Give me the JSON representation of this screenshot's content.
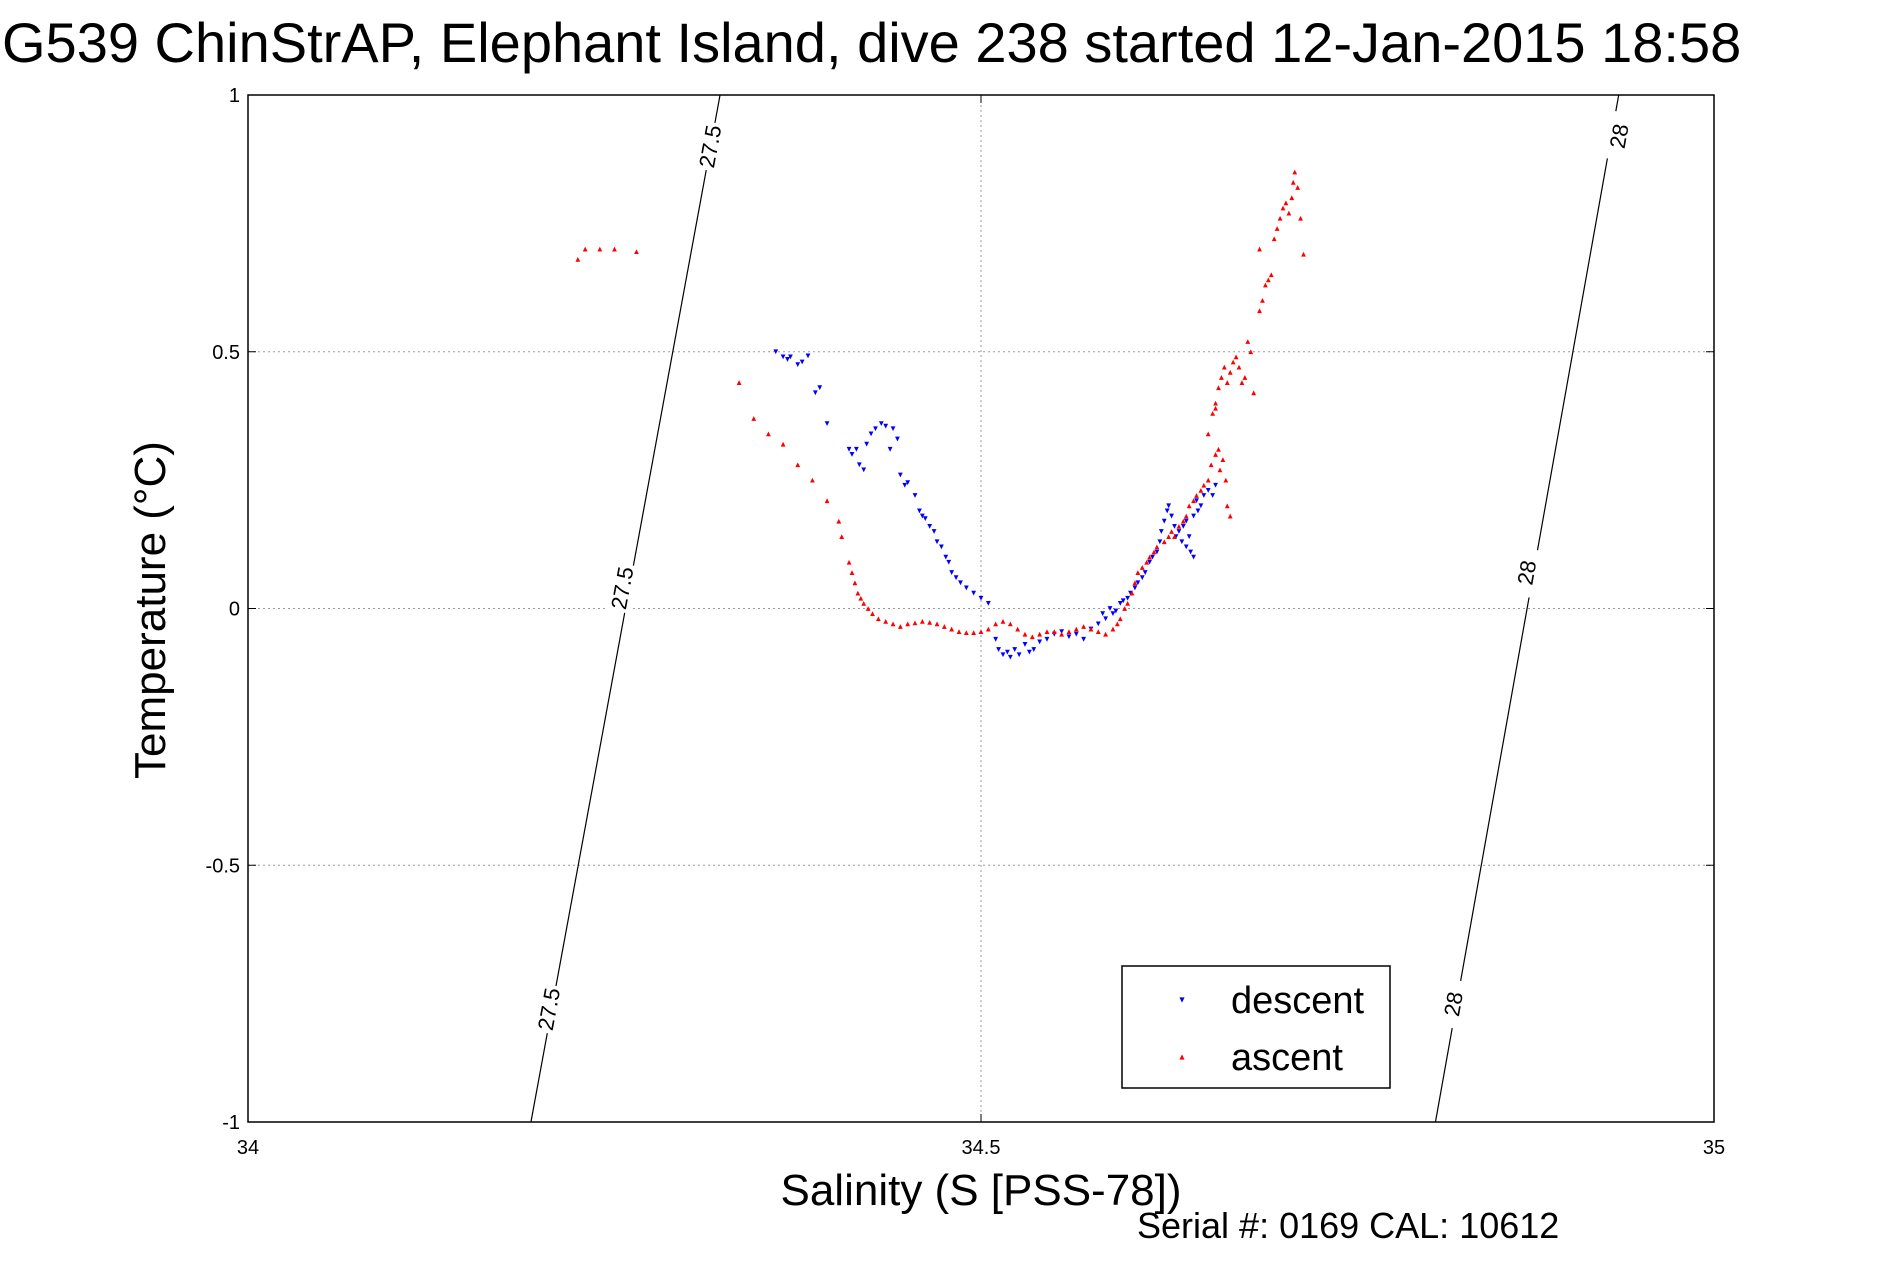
{
  "figure": {
    "title": "G539 ChinStrAP, Elephant Island, dive 238 started 12-Jan-2015 18:58",
    "footer": "Serial #: 0169 CAL: 10612"
  },
  "chart_data": {
    "type": "scatter",
    "title": "G539 ChinStrAP, Elephant Island, dive 238 started 12-Jan-2015 18:58",
    "xlabel": "Salinity (S [PSS-78])",
    "ylabel": "Temperature (°C)",
    "xlim": [
      34,
      35
    ],
    "ylim": [
      -1,
      1
    ],
    "xticks": [
      34,
      34.5,
      35
    ],
    "xtick_labels": [
      "34",
      "34.5",
      "35"
    ],
    "yticks": [
      -1,
      -0.5,
      0,
      0.5,
      1
    ],
    "ytick_labels": [
      "-1",
      "-0.5",
      "0",
      "0.5",
      "1"
    ],
    "grid": true,
    "legend_position": "bottom-right",
    "contours": [
      {
        "label": "27.5",
        "points": [
          [
            34.193,
            -1.0
          ],
          [
            34.322,
            1.0
          ]
        ],
        "label_positions": [
          [
            34.205,
            -0.78
          ],
          [
            34.255,
            0.04
          ],
          [
            34.315,
            0.9
          ]
        ]
      },
      {
        "label": "28",
        "points": [
          [
            34.81,
            -1.0
          ],
          [
            34.935,
            1.0
          ]
        ],
        "label_positions": [
          [
            34.822,
            -0.77
          ],
          [
            34.872,
            0.07
          ],
          [
            34.935,
            0.92
          ]
        ]
      }
    ],
    "series": [
      {
        "name": "descent",
        "color": "#0000ff",
        "marker": "triangle-down",
        "points": [
          [
            34.36,
            0.5
          ],
          [
            34.365,
            0.49
          ],
          [
            34.37,
            0.49
          ],
          [
            34.368,
            0.485
          ],
          [
            34.375,
            0.475
          ],
          [
            34.378,
            0.48
          ],
          [
            34.382,
            0.492
          ],
          [
            34.39,
            0.43
          ],
          [
            34.387,
            0.42
          ],
          [
            34.395,
            0.36
          ],
          [
            34.41,
            0.31
          ],
          [
            34.412,
            0.3
          ],
          [
            34.415,
            0.31
          ],
          [
            34.417,
            0.28
          ],
          [
            34.42,
            0.27
          ],
          [
            34.422,
            0.32
          ],
          [
            34.425,
            0.34
          ],
          [
            34.428,
            0.35
          ],
          [
            34.432,
            0.36
          ],
          [
            34.435,
            0.355
          ],
          [
            34.44,
            0.35
          ],
          [
            34.443,
            0.33
          ],
          [
            34.438,
            0.31
          ],
          [
            34.445,
            0.26
          ],
          [
            34.448,
            0.24
          ],
          [
            34.45,
            0.245
          ],
          [
            34.455,
            0.22
          ],
          [
            34.458,
            0.19
          ],
          [
            34.46,
            0.18
          ],
          [
            34.462,
            0.175
          ],
          [
            34.465,
            0.16
          ],
          [
            34.468,
            0.15
          ],
          [
            34.47,
            0.13
          ],
          [
            34.473,
            0.12
          ],
          [
            34.476,
            0.1
          ],
          [
            34.478,
            0.09
          ],
          [
            34.48,
            0.07
          ],
          [
            34.483,
            0.06
          ],
          [
            34.486,
            0.05
          ],
          [
            34.49,
            0.04
          ],
          [
            34.495,
            0.03
          ],
          [
            34.5,
            0.02
          ],
          [
            34.505,
            0.01
          ],
          [
            34.51,
            -0.06
          ],
          [
            34.512,
            -0.08
          ],
          [
            34.515,
            -0.09
          ],
          [
            34.518,
            -0.085
          ],
          [
            34.52,
            -0.095
          ],
          [
            34.523,
            -0.08
          ],
          [
            34.526,
            -0.09
          ],
          [
            34.53,
            -0.07
          ],
          [
            34.533,
            -0.085
          ],
          [
            34.536,
            -0.08
          ],
          [
            34.54,
            -0.065
          ],
          [
            34.545,
            -0.06
          ],
          [
            34.55,
            -0.05
          ],
          [
            34.555,
            -0.045
          ],
          [
            34.56,
            -0.055
          ],
          [
            34.565,
            -0.05
          ],
          [
            34.57,
            -0.06
          ],
          [
            34.575,
            -0.04
          ],
          [
            34.58,
            -0.03
          ],
          [
            34.583,
            -0.01
          ],
          [
            34.585,
            -0.02
          ],
          [
            34.588,
            0.0
          ],
          [
            34.59,
            -0.01
          ],
          [
            34.592,
            -0.005
          ],
          [
            34.595,
            0.01
          ],
          [
            34.597,
            0.015
          ],
          [
            34.6,
            0.02
          ],
          [
            34.602,
            0.03
          ],
          [
            34.605,
            0.04
          ],
          [
            34.607,
            0.05
          ],
          [
            34.61,
            0.06
          ],
          [
            34.612,
            0.07
          ],
          [
            34.615,
            0.09
          ],
          [
            34.617,
            0.1
          ],
          [
            34.62,
            0.11
          ],
          [
            34.622,
            0.13
          ],
          [
            34.623,
            0.15
          ],
          [
            34.625,
            0.17
          ],
          [
            34.627,
            0.19
          ],
          [
            34.628,
            0.2
          ],
          [
            34.63,
            0.18
          ],
          [
            34.632,
            0.16
          ],
          [
            34.633,
            0.14
          ],
          [
            34.635,
            0.15
          ],
          [
            34.637,
            0.13
          ],
          [
            34.638,
            0.16
          ],
          [
            34.64,
            0.17
          ],
          [
            34.64,
            0.12
          ],
          [
            34.642,
            0.14
          ],
          [
            34.643,
            0.11
          ],
          [
            34.645,
            0.1
          ],
          [
            34.645,
            0.18
          ],
          [
            34.647,
            0.21
          ],
          [
            34.648,
            0.19
          ],
          [
            34.65,
            0.2
          ],
          [
            34.652,
            0.22
          ],
          [
            34.655,
            0.23
          ],
          [
            34.658,
            0.22
          ],
          [
            34.66,
            0.24
          ]
        ]
      },
      {
        "name": "ascent",
        "color": "#ff0000",
        "marker": "triangle-up",
        "points": [
          [
            34.225,
            0.68
          ],
          [
            34.23,
            0.7
          ],
          [
            34.24,
            0.7
          ],
          [
            34.25,
            0.7
          ],
          [
            34.265,
            0.695
          ],
          [
            34.335,
            0.44
          ],
          [
            34.345,
            0.37
          ],
          [
            34.355,
            0.34
          ],
          [
            34.365,
            0.32
          ],
          [
            34.375,
            0.28
          ],
          [
            34.385,
            0.25
          ],
          [
            34.395,
            0.21
          ],
          [
            34.403,
            0.17
          ],
          [
            34.405,
            0.14
          ],
          [
            34.41,
            0.09
          ],
          [
            34.412,
            0.07
          ],
          [
            34.414,
            0.05
          ],
          [
            34.416,
            0.03
          ],
          [
            34.418,
            0.02
          ],
          [
            34.42,
            0.01
          ],
          [
            34.423,
            0.0
          ],
          [
            34.426,
            -0.01
          ],
          [
            34.43,
            -0.02
          ],
          [
            34.435,
            -0.025
          ],
          [
            34.44,
            -0.03
          ],
          [
            34.445,
            -0.035
          ],
          [
            34.45,
            -0.03
          ],
          [
            34.455,
            -0.028
          ],
          [
            34.46,
            -0.025
          ],
          [
            34.465,
            -0.027
          ],
          [
            34.47,
            -0.03
          ],
          [
            34.475,
            -0.035
          ],
          [
            34.48,
            -0.04
          ],
          [
            34.485,
            -0.045
          ],
          [
            34.49,
            -0.047
          ],
          [
            34.495,
            -0.047
          ],
          [
            34.5,
            -0.045
          ],
          [
            34.505,
            -0.04
          ],
          [
            34.51,
            -0.03
          ],
          [
            34.515,
            -0.025
          ],
          [
            34.52,
            -0.03
          ],
          [
            34.525,
            -0.04
          ],
          [
            34.53,
            -0.05
          ],
          [
            34.535,
            -0.055
          ],
          [
            34.54,
            -0.05
          ],
          [
            34.545,
            -0.045
          ],
          [
            34.55,
            -0.045
          ],
          [
            34.555,
            -0.05
          ],
          [
            34.56,
            -0.045
          ],
          [
            34.565,
            -0.04
          ],
          [
            34.57,
            -0.035
          ],
          [
            34.575,
            -0.04
          ],
          [
            34.58,
            -0.045
          ],
          [
            34.585,
            -0.05
          ],
          [
            34.59,
            -0.04
          ],
          [
            34.593,
            -0.03
          ],
          [
            34.595,
            -0.02
          ],
          [
            34.598,
            0.0
          ],
          [
            34.6,
            0.01
          ],
          [
            34.603,
            0.03
          ],
          [
            34.605,
            0.05
          ],
          [
            34.607,
            0.07
          ],
          [
            34.61,
            0.08
          ],
          [
            34.613,
            0.09
          ],
          [
            34.615,
            0.1
          ],
          [
            34.618,
            0.11
          ],
          [
            34.62,
            0.12
          ],
          [
            34.625,
            0.13
          ],
          [
            34.628,
            0.14
          ],
          [
            34.63,
            0.15
          ],
          [
            34.632,
            0.14
          ],
          [
            34.635,
            0.16
          ],
          [
            34.638,
            0.17
          ],
          [
            34.64,
            0.18
          ],
          [
            34.642,
            0.2
          ],
          [
            34.645,
            0.21
          ],
          [
            34.647,
            0.22
          ],
          [
            34.65,
            0.23
          ],
          [
            34.652,
            0.24
          ],
          [
            34.655,
            0.25
          ],
          [
            34.657,
            0.28
          ],
          [
            34.66,
            0.3
          ],
          [
            34.662,
            0.31
          ],
          [
            34.663,
            0.27
          ],
          [
            34.665,
            0.29
          ],
          [
            34.667,
            0.25
          ],
          [
            34.668,
            0.2
          ],
          [
            34.67,
            0.18
          ],
          [
            34.655,
            0.34
          ],
          [
            34.658,
            0.38
          ],
          [
            34.66,
            0.4
          ],
          [
            34.662,
            0.43
          ],
          [
            34.664,
            0.45
          ],
          [
            34.666,
            0.47
          ],
          [
            34.668,
            0.44
          ],
          [
            34.67,
            0.46
          ],
          [
            34.672,
            0.48
          ],
          [
            34.674,
            0.49
          ],
          [
            34.676,
            0.47
          ],
          [
            34.678,
            0.44
          ],
          [
            34.68,
            0.45
          ],
          [
            34.682,
            0.52
          ],
          [
            34.684,
            0.5
          ],
          [
            34.686,
            0.42
          ],
          [
            34.69,
            0.58
          ],
          [
            34.692,
            0.6
          ],
          [
            34.694,
            0.63
          ],
          [
            34.696,
            0.64
          ],
          [
            34.698,
            0.65
          ],
          [
            34.7,
            0.72
          ],
          [
            34.702,
            0.74
          ],
          [
            34.704,
            0.76
          ],
          [
            34.706,
            0.78
          ],
          [
            34.708,
            0.79
          ],
          [
            34.71,
            0.77
          ],
          [
            34.712,
            0.8
          ],
          [
            34.713,
            0.83
          ],
          [
            34.714,
            0.85
          ],
          [
            34.716,
            0.82
          ],
          [
            34.718,
            0.76
          ],
          [
            34.72,
            0.69
          ],
          [
            34.69,
            0.7
          ],
          [
            34.66,
            0.39
          ]
        ]
      }
    ]
  }
}
